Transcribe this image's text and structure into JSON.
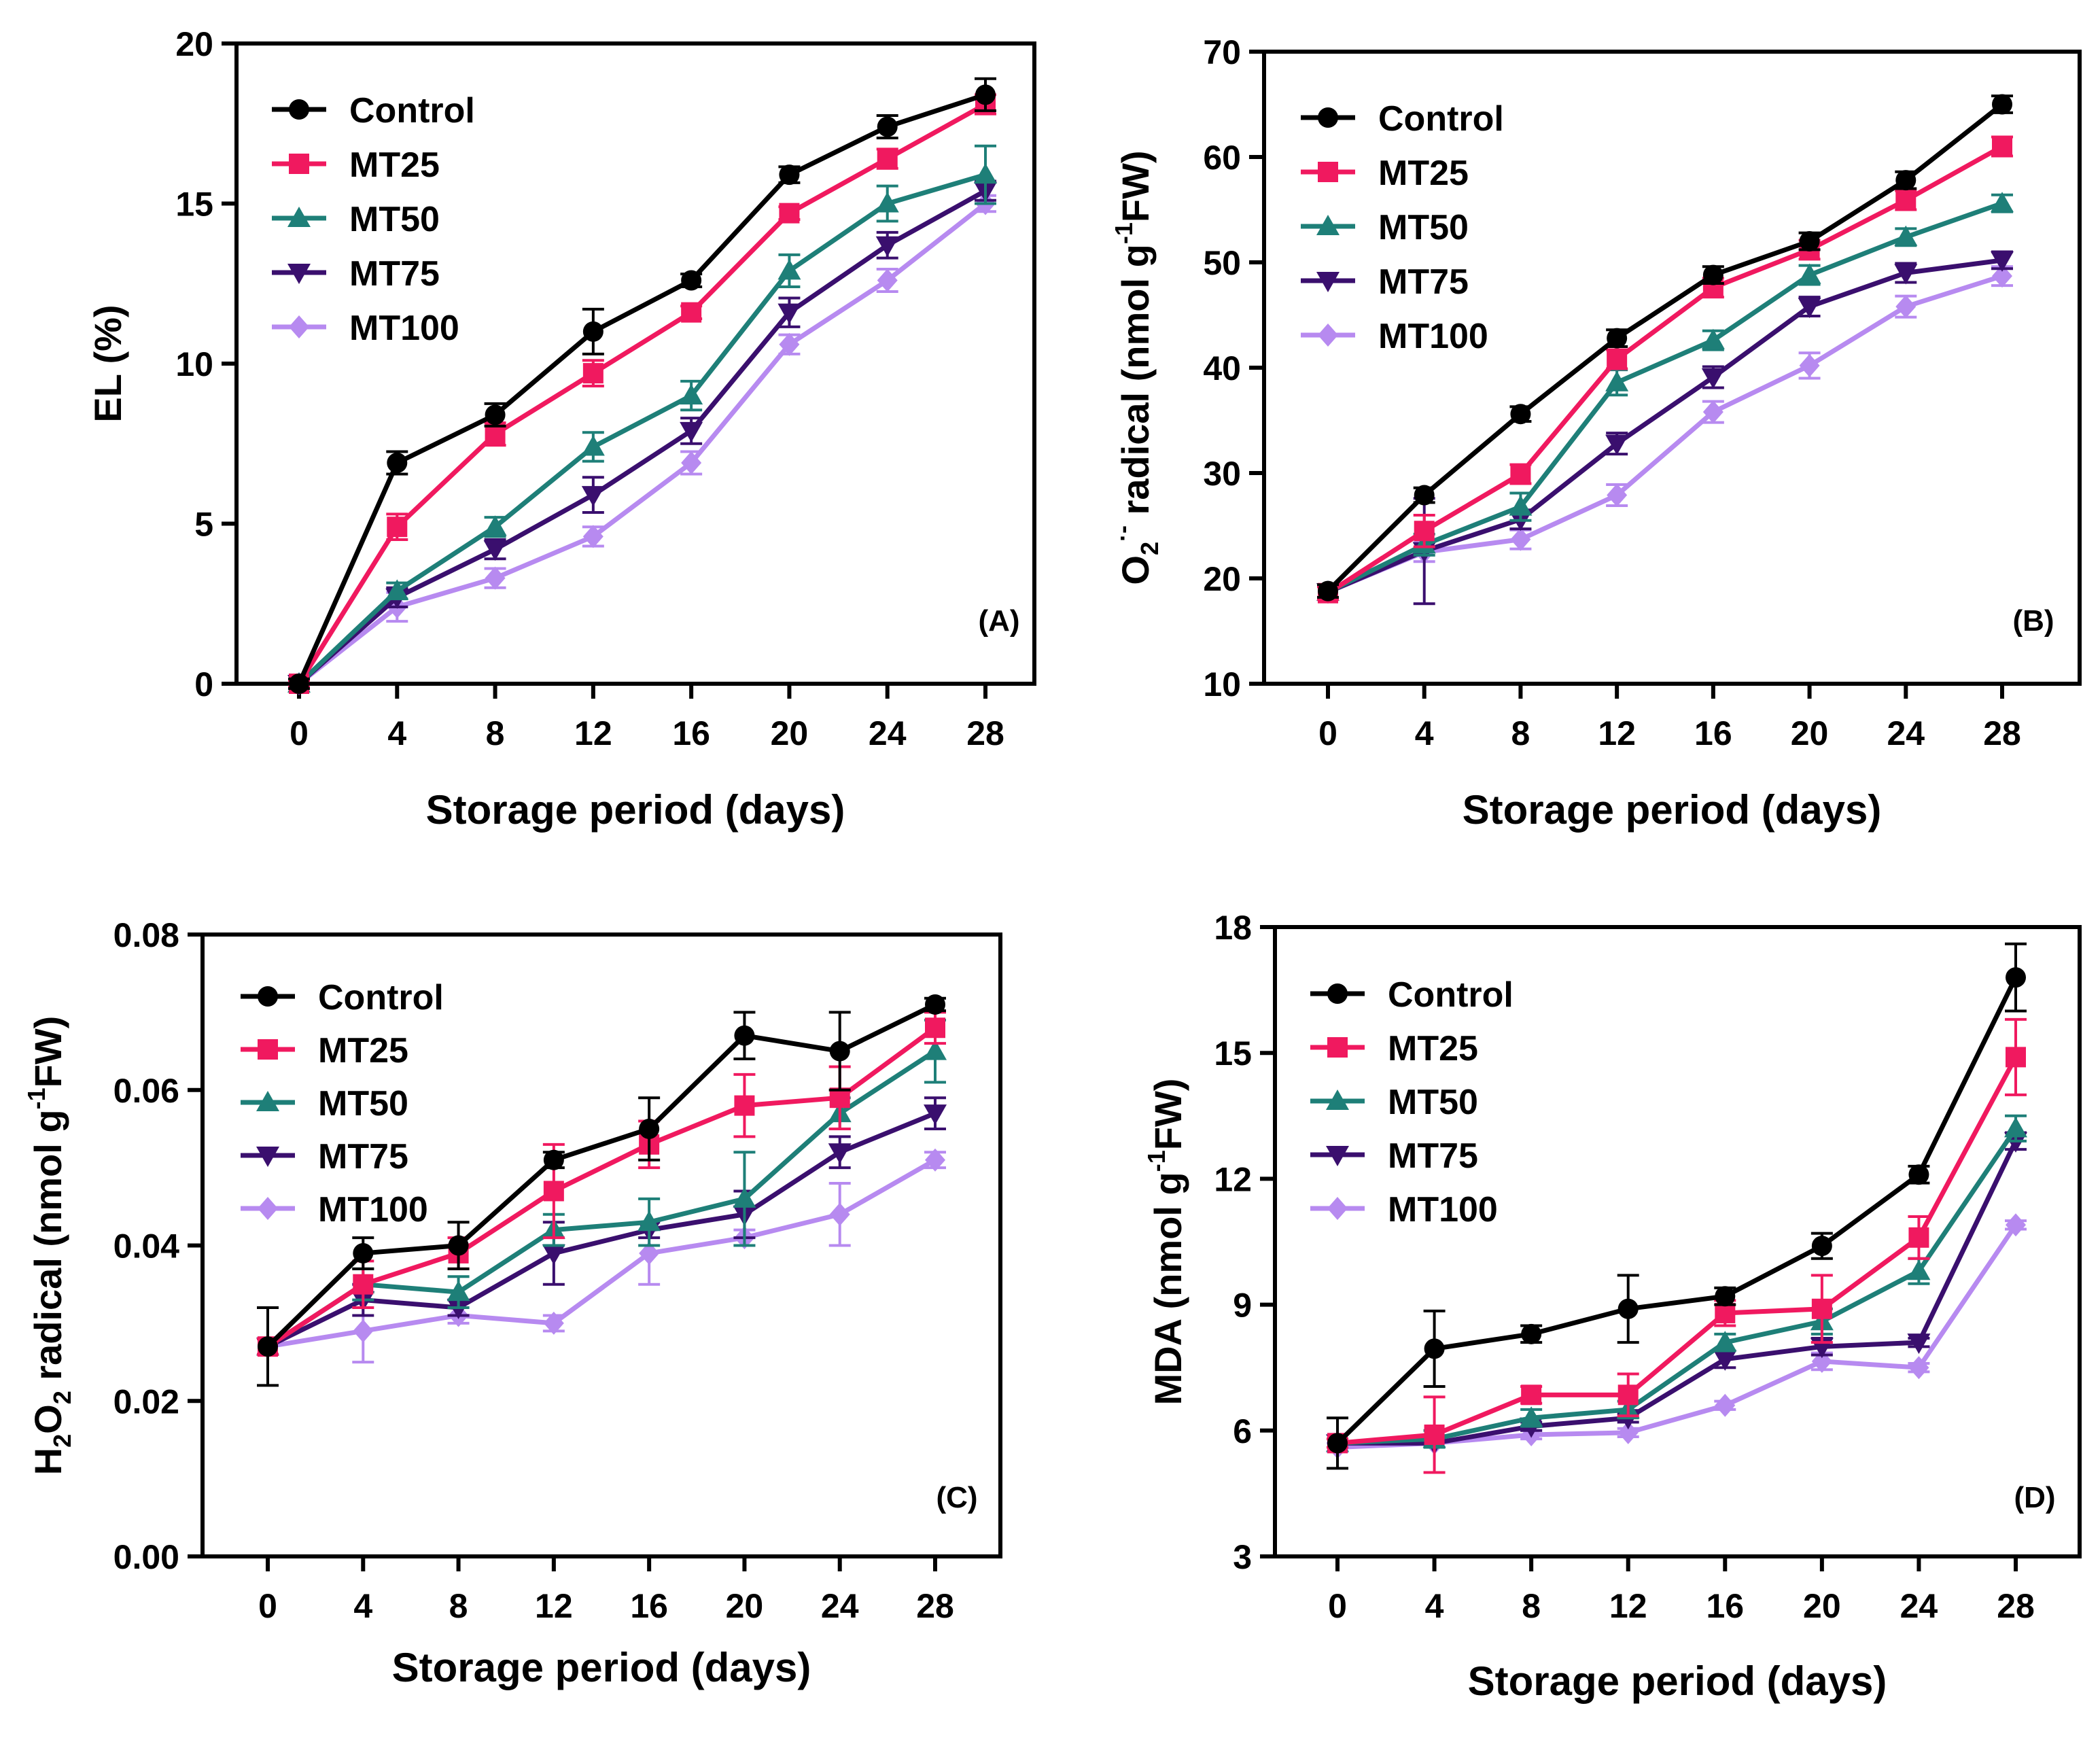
{
  "colors": {
    "Control": "#000000",
    "MT25": "#f0195f",
    "MT50": "#1e7f78",
    "MT75": "#3a0f6e",
    "MT100": "#b78af0"
  },
  "chart_data": [
    {
      "panel": "(A)",
      "type": "line",
      "xlabel": "Storage period (days)",
      "ylabel": "EL (%)",
      "x": [
        0,
        4,
        8,
        12,
        16,
        20,
        24,
        28
      ],
      "xticks": [
        "0",
        "4",
        "8",
        "12",
        "16",
        "20",
        "24",
        "28"
      ],
      "ylim": [
        0,
        20
      ],
      "yticks": [
        "0",
        "5",
        "10",
        "15",
        "20"
      ],
      "legend_position": "top-left",
      "series": [
        {
          "name": "Control",
          "marker": "circle",
          "values": [
            0,
            6.9,
            8.4,
            11.0,
            12.6,
            15.9,
            17.4,
            18.4
          ],
          "errors": [
            0.15,
            0.35,
            0.35,
            0.7,
            0.2,
            0.25,
            0.35,
            0.5
          ]
        },
        {
          "name": "MT25",
          "marker": "square",
          "values": [
            0,
            4.9,
            7.8,
            9.7,
            11.6,
            14.7,
            16.4,
            18.1
          ],
          "errors": [
            0.1,
            0.4,
            0.35,
            0.4,
            0.2,
            0.2,
            0.3,
            0.3
          ]
        },
        {
          "name": "MT50",
          "marker": "triangle-up",
          "values": [
            0,
            2.9,
            4.9,
            7.4,
            9.0,
            12.9,
            15.0,
            15.9
          ],
          "errors": [
            0.1,
            0.25,
            0.3,
            0.45,
            0.45,
            0.5,
            0.55,
            0.9
          ]
        },
        {
          "name": "MT75",
          "marker": "triangle-down",
          "values": [
            0,
            2.7,
            4.2,
            5.9,
            7.9,
            11.6,
            13.7,
            15.4
          ],
          "errors": [
            0.1,
            0.3,
            0.3,
            0.55,
            0.4,
            0.45,
            0.4,
            0.3
          ]
        },
        {
          "name": "MT100",
          "marker": "diamond",
          "values": [
            0,
            2.4,
            3.3,
            4.6,
            6.9,
            10.6,
            12.6,
            15.0
          ],
          "errors": [
            0.1,
            0.45,
            0.3,
            0.3,
            0.35,
            0.3,
            0.35,
            0.25
          ]
        }
      ]
    },
    {
      "panel": "(B)",
      "type": "line",
      "xlabel": "Storage period (days)",
      "ylabel": "O2·- radical (nmol g-1FW)",
      "ylabel_parts": {
        "main": "O",
        "sub": "2",
        "sup": "·-",
        "rest": " radical (nmol g",
        "sup2": "-1",
        "tail": "FW)"
      },
      "x": [
        0,
        4,
        8,
        12,
        16,
        20,
        24,
        28
      ],
      "xticks": [
        "0",
        "4",
        "8",
        "12",
        "16",
        "20",
        "24",
        "28"
      ],
      "ylim": [
        10,
        70
      ],
      "yticks": [
        "10",
        "20",
        "30",
        "40",
        "50",
        "60",
        "70"
      ],
      "legend_position": "top-left",
      "series": [
        {
          "name": "Control",
          "marker": "circle",
          "values": [
            18.8,
            27.9,
            35.6,
            42.8,
            48.8,
            52.0,
            57.8,
            65.0
          ],
          "errors": [
            0.6,
            0.7,
            0.7,
            0.8,
            0.8,
            0.8,
            0.8,
            0.8
          ]
        },
        {
          "name": "MT25",
          "marker": "square",
          "values": [
            18.6,
            24.5,
            29.9,
            40.8,
            47.6,
            51.2,
            55.9,
            61.0
          ],
          "errors": [
            0.6,
            1.5,
            0.9,
            0.9,
            0.9,
            0.9,
            0.9,
            0.9
          ]
        },
        {
          "name": "MT50",
          "marker": "triangle-up",
          "values": [
            18.7,
            23.2,
            26.8,
            38.6,
            42.6,
            48.8,
            52.4,
            55.6
          ],
          "errors": [
            0.6,
            1.0,
            1.3,
            1.2,
            0.9,
            0.9,
            0.8,
            0.8
          ]
        },
        {
          "name": "MT75",
          "marker": "triangle-down",
          "values": [
            18.7,
            22.6,
            25.6,
            32.8,
            39.1,
            45.8,
            49.0,
            50.2
          ],
          "errors": [
            0.6,
            5.0,
            0.9,
            1.0,
            1.0,
            0.9,
            0.9,
            0.8
          ]
        },
        {
          "name": "MT100",
          "marker": "diamond",
          "values": [
            18.7,
            22.5,
            23.7,
            27.9,
            35.8,
            40.2,
            45.8,
            48.7
          ],
          "errors": [
            0.6,
            0.9,
            0.9,
            1.0,
            1.0,
            1.2,
            1.0,
            0.9
          ]
        }
      ]
    },
    {
      "panel": "(C)",
      "type": "line",
      "xlabel": "Storage period (days)",
      "ylabel": "H2O2 radical (nmol g-1FW)",
      "ylabel_parts": {
        "main": "H",
        "sub": "2",
        "mid": "O",
        "sub2": "2",
        "rest": " radical (nmol g",
        "sup2": "-1",
        "tail": "FW)"
      },
      "x": [
        0,
        4,
        8,
        12,
        16,
        20,
        24,
        28
      ],
      "xticks": [
        "0",
        "4",
        "8",
        "12",
        "16",
        "20",
        "24",
        "28"
      ],
      "ylim": [
        0,
        0.08
      ],
      "yticks": [
        "0.00",
        "0.02",
        "0.04",
        "0.06",
        "0.08"
      ],
      "legend_position": "top-left",
      "series": [
        {
          "name": "Control",
          "marker": "circle",
          "values": [
            0.027,
            0.039,
            0.04,
            0.051,
            0.055,
            0.067,
            0.065,
            0.071
          ],
          "errors": [
            0.005,
            0.002,
            0.003,
            0.001,
            0.004,
            0.003,
            0.005,
            0.0008
          ]
        },
        {
          "name": "MT25",
          "marker": "square",
          "values": [
            0.027,
            0.035,
            0.039,
            0.047,
            0.053,
            0.058,
            0.059,
            0.068
          ],
          "errors": [
            0.001,
            0.003,
            0.002,
            0.006,
            0.003,
            0.004,
            0.004,
            0.002
          ]
        },
        {
          "name": "MT50",
          "marker": "triangle-up",
          "values": [
            0.027,
            0.035,
            0.034,
            0.042,
            0.043,
            0.046,
            0.057,
            0.065
          ],
          "errors": [
            0.001,
            0.002,
            0.002,
            0.002,
            0.003,
            0.006,
            0.002,
            0.004
          ]
        },
        {
          "name": "MT75",
          "marker": "triangle-down",
          "values": [
            0.027,
            0.033,
            0.032,
            0.039,
            0.042,
            0.044,
            0.052,
            0.057
          ],
          "errors": [
            0.001,
            0.002,
            0.001,
            0.004,
            0.001,
            0.003,
            0.002,
            0.002
          ]
        },
        {
          "name": "MT100",
          "marker": "diamond",
          "values": [
            0.027,
            0.029,
            0.031,
            0.03,
            0.039,
            0.041,
            0.044,
            0.051
          ],
          "errors": [
            0.001,
            0.004,
            0.001,
            0.001,
            0.004,
            0.001,
            0.004,
            0.001
          ]
        }
      ]
    },
    {
      "panel": "(D)",
      "type": "line",
      "xlabel": "Storage period (days)",
      "ylabel": "MDA (nmol g-1FW)",
      "ylabel_parts": {
        "main": "MDA (nmol g",
        "sup2": "-1",
        "tail": "FW)"
      },
      "x": [
        0,
        4,
        8,
        12,
        16,
        20,
        24,
        28
      ],
      "xticks": [
        "0",
        "4",
        "8",
        "12",
        "16",
        "20",
        "24",
        "28"
      ],
      "ylim": [
        3,
        18
      ],
      "yticks": [
        "3",
        "6",
        "9",
        "12",
        "15",
        "18"
      ],
      "legend_position": "top-left",
      "series": [
        {
          "name": "Control",
          "marker": "circle",
          "values": [
            5.7,
            7.95,
            8.3,
            8.9,
            9.2,
            10.4,
            12.1,
            16.8
          ],
          "errors": [
            0.6,
            0.9,
            0.2,
            0.8,
            0.2,
            0.3,
            0.2,
            0.8
          ]
        },
        {
          "name": "MT25",
          "marker": "square",
          "values": [
            5.7,
            5.9,
            6.85,
            6.85,
            8.8,
            8.9,
            10.6,
            14.9
          ],
          "errors": [
            0.1,
            0.9,
            0.2,
            0.5,
            0.3,
            0.8,
            0.5,
            0.9
          ]
        },
        {
          "name": "MT50",
          "marker": "triangle-up",
          "values": [
            5.7,
            5.8,
            6.3,
            6.5,
            8.1,
            8.6,
            9.8,
            13.2
          ],
          "errors": [
            0.1,
            0.2,
            0.2,
            0.2,
            0.2,
            0.3,
            0.3,
            0.3
          ]
        },
        {
          "name": "MT75",
          "marker": "triangle-down",
          "values": [
            5.7,
            5.7,
            6.1,
            6.3,
            7.7,
            8.0,
            8.1,
            12.9
          ],
          "errors": [
            0.1,
            0.1,
            0.1,
            0.1,
            0.2,
            0.2,
            0.1,
            0.2
          ]
        },
        {
          "name": "MT100",
          "marker": "diamond",
          "values": [
            5.6,
            5.7,
            5.9,
            5.95,
            6.6,
            7.65,
            7.5,
            10.9
          ],
          "errors": [
            0.1,
            0.1,
            0.1,
            0.1,
            0.1,
            0.2,
            0.1,
            0.1
          ]
        }
      ]
    }
  ]
}
